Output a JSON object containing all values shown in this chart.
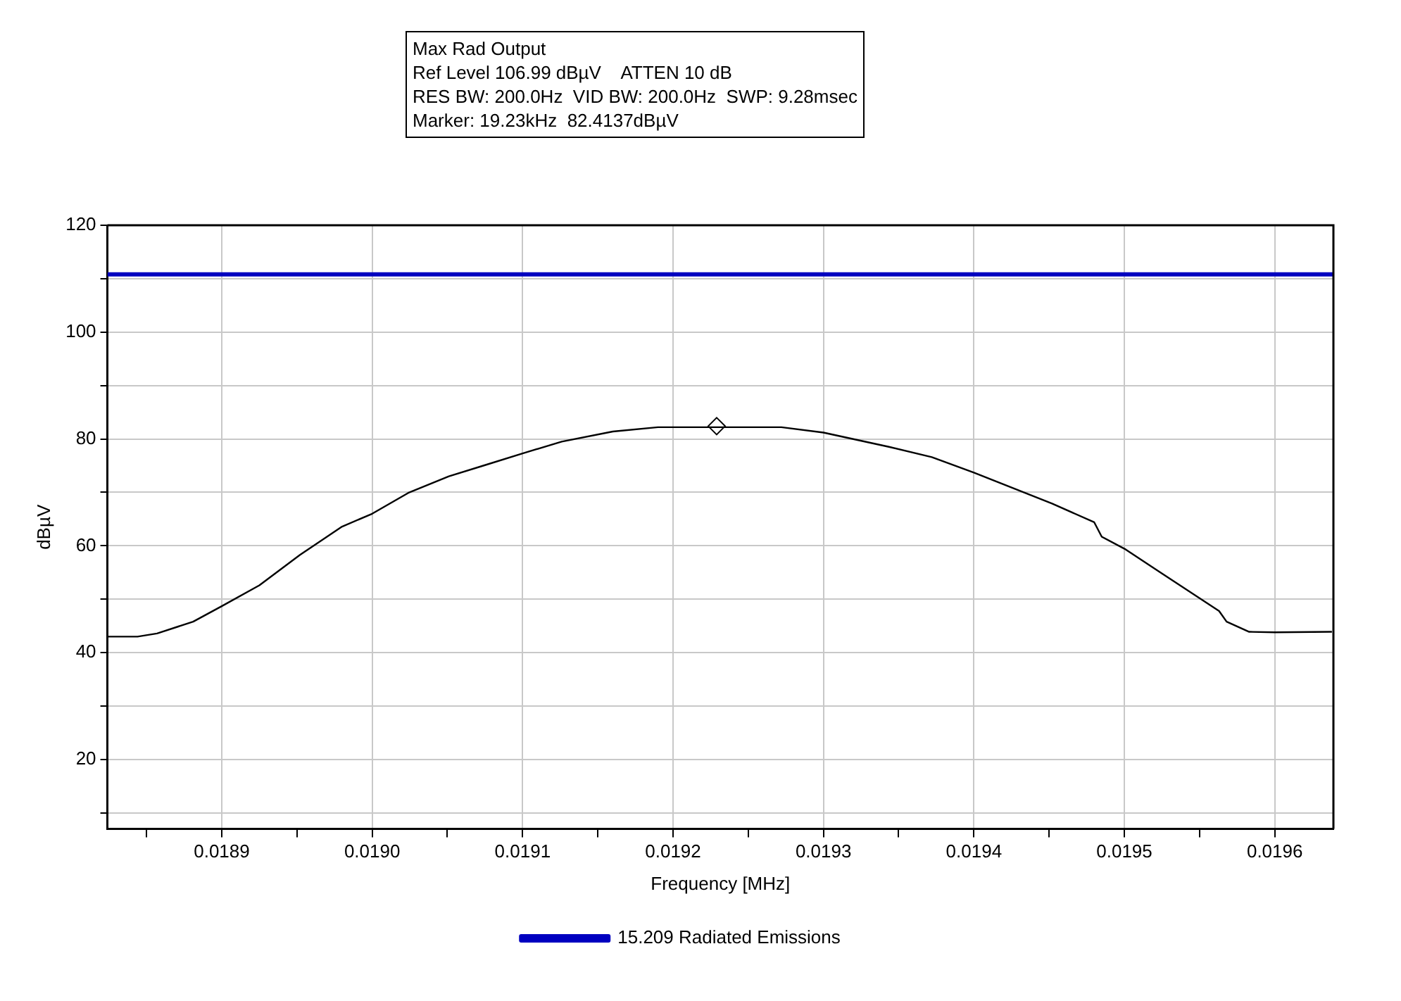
{
  "chart_data": {
    "type": "line",
    "xlabel": "Frequency [MHz]",
    "ylabel": "dBµV",
    "annotations": [
      "Max Rad Output",
      "Ref Level 106.99 dBµV    ATTEN 10 dB",
      "RES BW: 200.0Hz  VID BW: 200.0Hz  SWP: 9.28msec",
      "Marker: 19.23kHz  82.4137dBµV"
    ],
    "xlim": [
      0.018824,
      0.019639
    ],
    "xticks": [
      {
        "value": 0.01885,
        "label": null
      },
      0.0189,
      {
        "value": 0.01895,
        "label": null
      },
      {
        "value": 0.019,
        "label": "0.0190"
      },
      {
        "value": 0.01905,
        "label": null
      },
      0.0191,
      {
        "value": 0.01915,
        "label": null
      },
      0.0192,
      {
        "value": 0.01925,
        "label": null
      },
      0.0193,
      {
        "value": 0.01935,
        "label": null
      },
      0.0194,
      {
        "value": 0.01945,
        "label": null
      },
      0.0195,
      {
        "value": 0.01955,
        "label": null
      },
      0.0196
    ],
    "ylim": [
      7,
      120
    ],
    "yticks": [
      {
        "value": 10,
        "label": null
      },
      20,
      {
        "value": 30,
        "label": null
      },
      40,
      {
        "value": 50,
        "label": null
      },
      60,
      {
        "value": 70,
        "label": null
      },
      80,
      {
        "value": 90,
        "label": null
      },
      100,
      {
        "value": 110,
        "label": null
      },
      120
    ],
    "grid": true,
    "legend": "bottom",
    "marker": "none",
    "line_style": "solid",
    "series": [
      {
        "name": "15.209 Radiated Emissions",
        "color": "#0000c0",
        "x": [
          0.018824,
          0.019639
        ],
        "values": [
          110.8,
          110.8
        ]
      },
      {
        "color": "#000000",
        "x": [
          0.018824,
          0.018844,
          0.018857,
          0.018881,
          0.0189,
          0.018925,
          0.018952,
          0.01898,
          0.019,
          0.019024,
          0.019051,
          0.019075,
          0.0191,
          0.019126,
          0.01916,
          0.01919,
          0.019229,
          0.019272,
          0.0193,
          0.019344,
          0.019372,
          0.0194,
          0.019452,
          0.01948,
          0.019485,
          0.019501,
          0.019524,
          0.019563,
          0.019568,
          0.019583,
          0.0196,
          0.019638
        ],
        "values": [
          43.0,
          43.0,
          43.6,
          45.8,
          48.7,
          52.6,
          58.3,
          63.6,
          66.0,
          69.9,
          73.0,
          75.1,
          77.3,
          79.5,
          81.4,
          82.2,
          82.2,
          82.2,
          81.2,
          78.5,
          76.6,
          73.7,
          67.9,
          64.4,
          61.7,
          59.3,
          55.0,
          47.8,
          45.8,
          43.9,
          43.8,
          43.9
        ]
      },
      {
        "type": "scatter",
        "marker": "diamond",
        "color": "#000000",
        "x": [
          0.019229
        ],
        "values": [
          82.4
        ]
      }
    ]
  }
}
